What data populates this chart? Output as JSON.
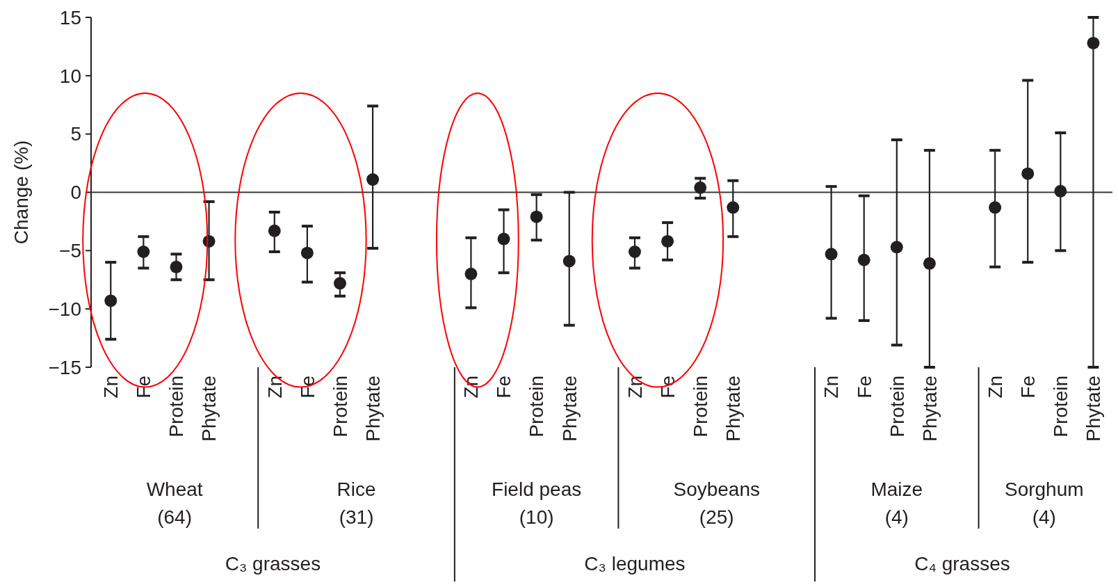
{
  "chart_data": {
    "type": "scatter",
    "ylabel": "Change (%)",
    "categories": [
      "Zn",
      "Fe",
      "Protein",
      "Phytate",
      null,
      "Zn",
      "Fe",
      "Protein",
      "Phytate",
      null,
      null,
      "Zn",
      "Fe",
      "Protein",
      "Phytate",
      null,
      "Zn",
      "Fe",
      "Protein",
      "Phytate",
      null,
      null,
      "Zn",
      "Fe",
      "Protein",
      "Phytate",
      null,
      "Zn",
      "Fe",
      "Protein",
      "Phytate"
    ],
    "series": [
      {
        "color": "#231f20",
        "values": [
          -9.3,
          -5.1,
          -6.4,
          -4.2,
          null,
          -3.3,
          -5.2,
          -7.8,
          1.1,
          null,
          null,
          -7.0,
          -4.0,
          -2.1,
          -5.9,
          null,
          -5.1,
          -4.2,
          0.4,
          -1.3,
          null,
          null,
          -5.3,
          -5.8,
          -4.7,
          -6.1,
          null,
          -1.3,
          1.6,
          0.1,
          12.8
        ],
        "errors": [
          [
            -12.6,
            -6.0
          ],
          [
            -6.5,
            -3.8
          ],
          [
            -7.5,
            -5.3
          ],
          [
            -7.5,
            -0.8
          ],
          null,
          [
            -5.1,
            -1.7
          ],
          [
            -7.7,
            -2.9
          ],
          [
            -8.9,
            -6.9
          ],
          [
            -4.8,
            7.4
          ],
          null,
          null,
          [
            -9.9,
            -3.9
          ],
          [
            -6.9,
            -1.5
          ],
          [
            -4.1,
            -0.2
          ],
          [
            -11.4,
            0.0
          ],
          null,
          [
            -6.5,
            -3.9
          ],
          [
            -5.8,
            -2.6
          ],
          [
            -0.5,
            1.2
          ],
          [
            -3.8,
            1.0
          ],
          null,
          null,
          [
            -10.8,
            0.5
          ],
          [
            -11.0,
            -0.3
          ],
          [
            -13.1,
            4.5
          ],
          [
            -15.0,
            3.6
          ],
          null,
          [
            -6.4,
            3.6
          ],
          [
            -6.0,
            9.6
          ],
          [
            -5.0,
            5.1
          ],
          [
            -15.0,
            15.0
          ]
        ]
      }
    ],
    "ylim": [
      -15,
      15
    ],
    "yticks": [
      {
        "value": -15,
        "label": "−15"
      },
      {
        "value": -10,
        "label": "−10"
      },
      {
        "value": -5,
        "label": "−5"
      },
      0,
      5,
      10,
      15
    ],
    "ref_lines": [
      {
        "axis": "y",
        "value": 0
      }
    ],
    "marker": "circle",
    "annotations": [
      "Wheat\n(64)",
      "Rice\n(31)",
      "Field peas\n(10)",
      "Soybeans\n(25)",
      "Maize\n(4)",
      "Sorghum\n(4)",
      "C₃ grasses",
      "C₃ legumes",
      "C₄ grasses"
    ]
  }
}
